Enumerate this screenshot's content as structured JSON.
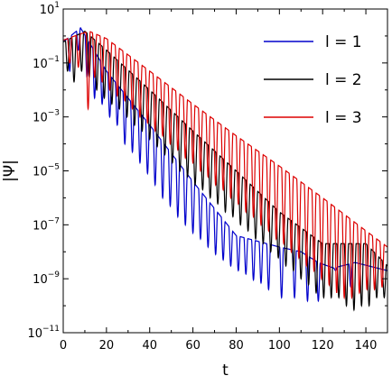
{
  "chart_data": {
    "type": "line",
    "xlabel": "t",
    "ylabel": "|Ψ|",
    "xlim": [
      0,
      150
    ],
    "ylim": [
      1e-11,
      10
    ],
    "yscale": "log",
    "grid": false,
    "legend_position": "top-right",
    "x_ticks": [
      0,
      20,
      40,
      60,
      80,
      100,
      120,
      140
    ],
    "y_ticks": [
      {
        "value": 1e-11,
        "base": "10",
        "exp": "−11"
      },
      {
        "value": 1e-09,
        "base": "10",
        "exp": "−9"
      },
      {
        "value": 1e-07,
        "base": "10",
        "exp": "−7"
      },
      {
        "value": 1e-05,
        "base": "10",
        "exp": "−5"
      },
      {
        "value": 0.001,
        "base": "10",
        "exp": "−3"
      },
      {
        "value": 0.1,
        "base": "10",
        "exp": "−1"
      },
      {
        "value": 10,
        "base": "10",
        "exp": "1"
      }
    ],
    "series": [
      {
        "name": "l = 1",
        "color": "#0000cc",
        "envelope": [
          [
            0,
            0.6
          ],
          [
            8,
            2
          ],
          [
            20,
            0.05
          ],
          [
            40,
            0.0005
          ],
          [
            60,
            4e-06
          ],
          [
            80,
            4e-08
          ],
          [
            100,
            1.5e-08
          ],
          [
            110,
            1e-08
          ],
          [
            118,
            4e-09
          ],
          [
            125,
            2.5e-09
          ],
          [
            135,
            4e-09
          ],
          [
            150,
            2e-09
          ]
        ],
        "dips": [
          [
            3,
            0.05
          ],
          [
            7,
            0.3
          ],
          [
            11,
            0.03
          ],
          [
            14.5,
            0.005
          ],
          [
            18,
            0.003
          ],
          [
            21.5,
            0.001
          ],
          [
            25,
            0.0005
          ],
          [
            28.5,
            0.0001
          ],
          [
            32,
            5e-05
          ],
          [
            35.5,
            2e-05
          ],
          [
            39,
            8e-06
          ],
          [
            42.5,
            3e-06
          ],
          [
            46,
            1e-06
          ],
          [
            49.5,
            5e-07
          ],
          [
            53,
            2e-07
          ],
          [
            56.5,
            1e-07
          ],
          [
            60,
            5e-08
          ],
          [
            63.5,
            3e-08
          ],
          [
            67,
            1.5e-08
          ],
          [
            70.5,
            8e-09
          ],
          [
            74,
            5e-09
          ],
          [
            77.5,
            3e-09
          ],
          [
            81,
            2e-09
          ],
          [
            84.5,
            1.5e-09
          ],
          [
            88,
            9e-10
          ],
          [
            91.5,
            7e-10
          ],
          [
            95,
            4e-10
          ],
          [
            101,
            2e-10
          ],
          [
            107,
            2e-10
          ],
          [
            113,
            1.5e-10
          ],
          [
            118,
            1.5e-10
          ],
          [
            126,
            2e-09
          ],
          [
            133,
            5e-10
          ]
        ],
        "dip_width": 0.9
      },
      {
        "name": "l = 2",
        "color": "#000000",
        "envelope": [
          [
            0,
            0.6
          ],
          [
            10,
            1.5
          ],
          [
            20,
            0.3
          ],
          [
            40,
            0.01
          ],
          [
            60,
            0.0003
          ],
          [
            80,
            1e-05
          ],
          [
            100,
            3e-07
          ],
          [
            120,
            2e-08
          ],
          [
            140,
            2e-08
          ],
          [
            150,
            3e-09
          ]
        ],
        "dips": [
          [
            2,
            0.05
          ],
          [
            5,
            0.02
          ],
          [
            8.5,
            0.05
          ],
          [
            12,
            0.03
          ],
          [
            15.5,
            0.01
          ],
          [
            19,
            0.005
          ],
          [
            22.5,
            0.003
          ],
          [
            26,
            0.002
          ],
          [
            29.5,
            0.001
          ],
          [
            33,
            0.0005
          ],
          [
            36.5,
            0.0003
          ],
          [
            40,
            0.00015
          ],
          [
            43.5,
            8e-05
          ],
          [
            47,
            4e-05
          ],
          [
            50.5,
            2e-05
          ],
          [
            54,
            1e-05
          ],
          [
            57.5,
            6e-06
          ],
          [
            61,
            3e-06
          ],
          [
            64.5,
            2e-06
          ],
          [
            68,
            1e-06
          ],
          [
            71.5,
            6e-07
          ],
          [
            75,
            3e-07
          ],
          [
            78.5,
            2e-07
          ],
          [
            82,
            1e-07
          ],
          [
            85.5,
            6e-08
          ],
          [
            89,
            3e-08
          ],
          [
            92.5,
            2e-08
          ],
          [
            96,
            1e-08
          ],
          [
            99.5,
            6e-09
          ],
          [
            103,
            3e-09
          ],
          [
            106.5,
            2e-09
          ],
          [
            110,
            1e-09
          ],
          [
            113.5,
            6e-10
          ],
          [
            117,
            3e-10
          ],
          [
            120.5,
            2e-10
          ],
          [
            124,
            2e-10
          ],
          [
            127.5,
            2e-10
          ],
          [
            131,
            1e-10
          ],
          [
            134.5,
            7e-11
          ],
          [
            138,
            1e-10
          ],
          [
            141.5,
            1e-10
          ],
          [
            145,
            2e-10
          ],
          [
            148.5,
            2e-10
          ]
        ],
        "dip_width": 1.0
      },
      {
        "name": "l = 3",
        "color": "#dd0000",
        "envelope": [
          [
            0,
            0.7
          ],
          [
            8,
            1.2
          ],
          [
            12,
            1.5
          ],
          [
            20,
            0.8
          ],
          [
            40,
            0.05
          ],
          [
            60,
            0.003
          ],
          [
            80,
            0.0002
          ],
          [
            100,
            1.5e-05
          ],
          [
            120,
            1e-06
          ],
          [
            140,
            6e-08
          ],
          [
            150,
            1.5e-08
          ]
        ],
        "dips": [
          [
            3,
            0.1
          ],
          [
            7,
            0.07
          ],
          [
            11.5,
            0.002
          ],
          [
            14.5,
            0.03
          ],
          [
            18,
            0.02
          ],
          [
            21.5,
            0.01
          ],
          [
            25,
            0.006
          ],
          [
            28.5,
            0.004
          ],
          [
            32,
            0.002
          ],
          [
            35.5,
            0.001
          ],
          [
            39,
            0.0006
          ],
          [
            42.5,
            0.0003
          ],
          [
            46,
            0.0002
          ],
          [
            49.5,
            0.0001
          ],
          [
            53,
            6e-05
          ],
          [
            56.5,
            3e-05
          ],
          [
            60,
            2e-05
          ],
          [
            63.5,
            1e-05
          ],
          [
            67,
            6e-06
          ],
          [
            70.5,
            3e-06
          ],
          [
            74,
            2e-06
          ],
          [
            77.5,
            1e-06
          ],
          [
            81,
            6e-07
          ],
          [
            84.5,
            3e-07
          ],
          [
            88,
            2e-07
          ],
          [
            91.5,
            1e-07
          ],
          [
            95,
            6e-08
          ],
          [
            98.5,
            3e-08
          ],
          [
            102,
            2e-08
          ],
          [
            105.5,
            1e-08
          ],
          [
            109,
            6e-09
          ],
          [
            112.5,
            3e-09
          ],
          [
            116,
            2e-09
          ],
          [
            119.5,
            1e-09
          ],
          [
            123,
            6e-10
          ],
          [
            126.5,
            3e-10
          ],
          [
            130,
            2e-10
          ],
          [
            133.5,
            2e-10
          ],
          [
            137,
            3e-10
          ],
          [
            140.5,
            4e-10
          ],
          [
            144,
            4e-10
          ],
          [
            147.5,
            5e-10
          ]
        ],
        "dip_width": 1.0
      }
    ]
  }
}
